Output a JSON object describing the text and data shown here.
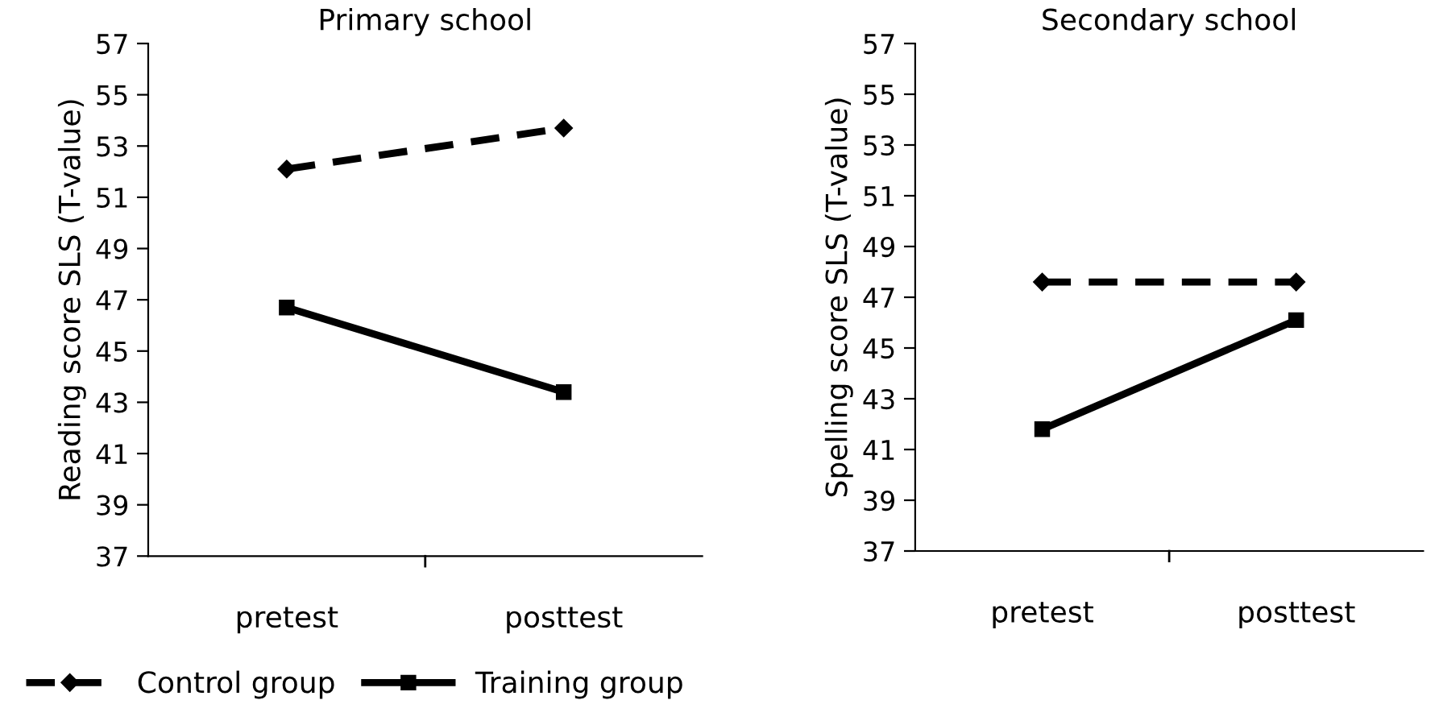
{
  "chart_data": [
    {
      "type": "line",
      "title": "Primary school",
      "ylabel": "Reading score SLS (T-value)",
      "categories": [
        "pretest",
        "posttest"
      ],
      "ylim": [
        37,
        57
      ],
      "yticks": [
        37,
        39,
        41,
        43,
        45,
        47,
        49,
        51,
        53,
        55,
        57
      ],
      "grid": false,
      "legend": "bottom",
      "series": [
        {
          "name": "Control group",
          "color": "#000000",
          "marker": "diamond",
          "line_style": "dashed",
          "values": [
            52.1,
            53.7
          ]
        },
        {
          "name": "Training group",
          "color": "#000000",
          "marker": "square",
          "line_style": "solid",
          "values": [
            46.7,
            43.4
          ]
        }
      ]
    },
    {
      "type": "line",
      "title": "Secondary school",
      "ylabel": "Spelling score SLS (T-value)",
      "categories": [
        "pretest",
        "posttest"
      ],
      "ylim": [
        37,
        57
      ],
      "yticks": [
        37,
        39,
        41,
        43,
        45,
        47,
        49,
        51,
        53,
        55,
        57
      ],
      "grid": false,
      "series": [
        {
          "color": "#000000",
          "marker": "diamond",
          "line_style": "dashed",
          "values": [
            47.6,
            47.6
          ]
        },
        {
          "color": "#000000",
          "marker": "square",
          "line_style": "solid",
          "values": [
            41.8,
            46.1
          ]
        }
      ]
    }
  ]
}
